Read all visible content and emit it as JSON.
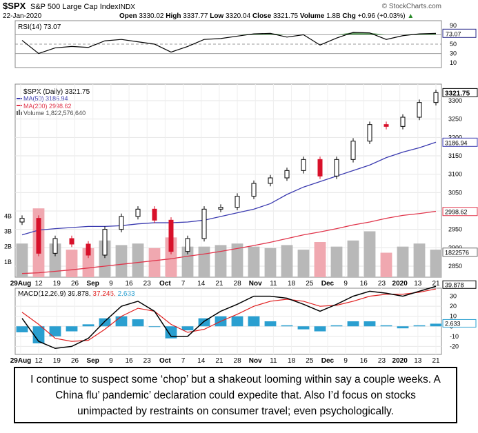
{
  "header": {
    "symbol": "$SPX",
    "name": "S&P 500 Large Cap Index",
    "exchange": "INDX",
    "date": "22-Jan-2020",
    "open_label": "Open",
    "open": "3330.02",
    "high_label": "High",
    "high": "3337.77",
    "low_label": "Low",
    "low": "3320.04",
    "close_label": "Close",
    "close": "3321.75",
    "volume_label": "Volume",
    "volume": "1.8B",
    "chg_label": "Chg",
    "chg": "+0.96 (+0.03%)",
    "chg_arrow": "▲",
    "watermark": "© StockCharts.com"
  },
  "colors": {
    "up": "#000000",
    "down": "#d8102a",
    "ma50": "#3b3bb0",
    "ma200": "#e0344a",
    "rsi_fill": "#4f8f4f",
    "macd_line": "#000000",
    "macd_signal": "#e02020",
    "histogram": "#2a9fd0",
    "volume_up": "#b8b8b8",
    "volume_down": "#f0a8b0"
  },
  "chart_data": [
    {
      "type": "line",
      "panel": "rsi",
      "title": "RSI(14) 73.07",
      "current_label": "73.07",
      "ylim": [
        0,
        100
      ],
      "y_ticks": [
        "90",
        "70",
        "50",
        "30",
        "10"
      ],
      "reference_lines": [
        70,
        50,
        30
      ],
      "x": [
        "2019-08-01",
        "2019-08-06",
        "2019-08-13",
        "2019-08-20",
        "2019-08-27",
        "2019-09-03",
        "2019-09-10",
        "2019-09-17",
        "2019-09-24",
        "2019-10-01",
        "2019-10-08",
        "2019-10-15",
        "2019-10-22",
        "2019-10-29",
        "2019-11-05",
        "2019-11-12",
        "2019-11-19",
        "2019-11-26",
        "2019-12-03",
        "2019-12-10",
        "2019-12-17",
        "2019-12-24",
        "2019-12-31",
        "2020-01-07",
        "2020-01-14",
        "2020-01-22"
      ],
      "values": [
        58,
        30,
        42,
        45,
        43,
        57,
        60,
        55,
        50,
        33,
        45,
        60,
        62,
        67,
        72,
        73,
        65,
        70,
        48,
        63,
        75,
        74,
        60,
        68,
        72,
        73
      ]
    },
    {
      "type": "bar",
      "panel": "price",
      "title": "$SPX (Daily) 3321.75",
      "legend": [
        "$SPX (Daily) 3321.75",
        "MA(50) 3186.94",
        "MA(200) 2998.62",
        "Volume 1,822,576,640"
      ],
      "price_label": "3321.75",
      "ma50_label": "3186.94",
      "ma200_label": "2998.62",
      "volume_label": "1822576",
      "y_ticks": [
        "3300",
        "3250",
        "3200",
        "3150",
        "3100",
        "3050",
        "3000",
        "2950",
        "2900",
        "2850"
      ],
      "volume_ticks": [
        "4B",
        "3B",
        "2B",
        "1B"
      ],
      "ylim": [
        2820,
        3345
      ],
      "x_tick_labels": [
        "29Aug",
        "12",
        "19",
        "26",
        "Sep",
        "9",
        "16",
        "23",
        "Oct",
        "7",
        "14",
        "21",
        "28",
        "Nov",
        "11",
        "18",
        "25",
        "Dec",
        "9",
        "16",
        "23",
        "2020",
        "13",
        "21"
      ],
      "x": [
        "2019-08-01",
        "2019-08-06",
        "2019-08-13",
        "2019-08-20",
        "2019-08-27",
        "2019-09-03",
        "2019-09-10",
        "2019-09-17",
        "2019-09-24",
        "2019-10-01",
        "2019-10-08",
        "2019-10-15",
        "2019-10-22",
        "2019-10-29",
        "2019-11-05",
        "2019-11-12",
        "2019-11-19",
        "2019-11-26",
        "2019-12-03",
        "2019-12-10",
        "2019-12-17",
        "2019-12-24",
        "2019-12-31",
        "2020-01-07",
        "2020-01-14",
        "2020-01-22"
      ],
      "series": [
        {
          "name": "Close",
          "values": [
            2980,
            2885,
            2925,
            2910,
            2880,
            2950,
            2985,
            3005,
            2975,
            2890,
            2925,
            3005,
            3010,
            3040,
            3075,
            3090,
            3110,
            3140,
            3095,
            3140,
            3190,
            3235,
            3230,
            3255,
            3295,
            3322
          ]
        },
        {
          "name": "MA(50)",
          "values": [
            2935,
            2948,
            2952,
            2955,
            2958,
            2958,
            2960,
            2965,
            2968,
            2968,
            2970,
            2975,
            2985,
            2995,
            3005,
            3020,
            3045,
            3065,
            3080,
            3095,
            3110,
            3125,
            3145,
            3160,
            3172,
            3187
          ]
        },
        {
          "name": "MA(200)",
          "values": [
            2830,
            2832,
            2836,
            2840,
            2845,
            2850,
            2855,
            2860,
            2865,
            2870,
            2877,
            2883,
            2890,
            2898,
            2906,
            2915,
            2925,
            2935,
            2943,
            2952,
            2962,
            2970,
            2980,
            2988,
            2993,
            2999
          ]
        },
        {
          "name": "Volume (B)",
          "values": [
            2.2,
            4.5,
            2.2,
            1.8,
            1.9,
            2.4,
            2.1,
            2.2,
            1.9,
            2.6,
            2.0,
            2.0,
            2.1,
            2.2,
            2.0,
            1.9,
            2.1,
            1.8,
            2.3,
            2.0,
            2.4,
            3.0,
            1.6,
            2.0,
            2.2,
            1.8
          ]
        }
      ]
    },
    {
      "type": "line",
      "panel": "macd",
      "title": "MACD(12,26,9) 39.878, 37.245, 2.633",
      "legend": [
        "MACD(12,26,9)",
        "39.878,",
        "37.245,",
        "2.633"
      ],
      "macd_label": "39.878",
      "signal_label": "37.245",
      "hist_label": "2.633",
      "y_ticks": [
        "30",
        "20",
        "10",
        "0",
        "-10",
        "-20"
      ],
      "ylim": [
        -28,
        38
      ],
      "x_tick_labels": [
        "29Aug",
        "12",
        "19",
        "26",
        "Sep",
        "9",
        "16",
        "23",
        "Oct",
        "7",
        "14",
        "21",
        "28",
        "Nov",
        "11",
        "18",
        "25",
        "Dec",
        "9",
        "16",
        "23",
        "2020",
        "13",
        "21"
      ],
      "x": [
        "2019-08-01",
        "2019-08-06",
        "2019-08-13",
        "2019-08-20",
        "2019-08-27",
        "2019-09-03",
        "2019-09-10",
        "2019-09-17",
        "2019-09-24",
        "2019-10-01",
        "2019-10-08",
        "2019-10-15",
        "2019-10-22",
        "2019-10-29",
        "2019-11-05",
        "2019-11-12",
        "2019-11-19",
        "2019-11-26",
        "2019-12-03",
        "2019-12-10",
        "2019-12-17",
        "2019-12-24",
        "2019-12-31",
        "2020-01-07",
        "2020-01-14",
        "2020-01-22"
      ],
      "series": [
        {
          "name": "MACD",
          "values": [
            8,
            -15,
            -22,
            -20,
            -12,
            5,
            20,
            25,
            15,
            -10,
            -10,
            5,
            15,
            22,
            30,
            30,
            28,
            22,
            15,
            22,
            30,
            35,
            33,
            30,
            35,
            39.878
          ]
        },
        {
          "name": "Signal",
          "values": [
            14,
            2,
            -12,
            -15,
            -14,
            -3,
            10,
            18,
            15,
            2,
            -6,
            -3,
            5,
            12,
            20,
            25,
            27,
            25,
            20,
            21,
            25,
            30,
            32,
            32,
            34,
            37.245
          ]
        },
        {
          "name": "Histogram",
          "values": [
            -6,
            -17,
            -10,
            -5,
            2,
            8,
            10,
            7,
            0,
            -12,
            -4,
            8,
            10,
            10,
            10,
            5,
            1,
            -3,
            -5,
            1,
            5,
            5,
            1,
            -2,
            1,
            2.633
          ]
        }
      ]
    }
  ],
  "caption": "I continue to suspect some ‘chop’ but a shakeout looming within say a couple weeks. A China flu’ pandemic’ declaration could expedite that. Also I’d focus on stocks unimpacted by restraints on consumer travel; even psychologically."
}
